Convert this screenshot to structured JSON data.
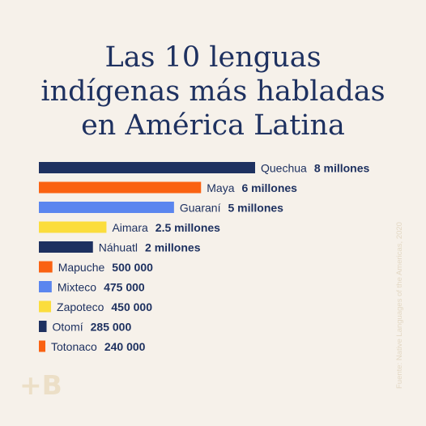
{
  "title": [
    "Las 10 lenguas",
    "indígenas más habladas",
    "en América Latina"
  ],
  "source": "Fuente: Native Languages of the Americas, 2020",
  "logo": "+B",
  "colors": {
    "navy": "#1e3160",
    "orange": "#fa6212",
    "blue": "#5b86ef",
    "yellow": "#fbdd3c",
    "text": "#1e3160"
  },
  "chart_data": {
    "type": "bar",
    "orientation": "horizontal",
    "categories": [
      "Quechua",
      "Maya",
      "Guaraní",
      "Aimara",
      "Náhuatl",
      "Mapuche",
      "Mixteco",
      "Zapoteco",
      "Otomí",
      "Totonaco"
    ],
    "values": [
      8000000,
      6000000,
      5000000,
      2500000,
      2000000,
      500000,
      475000,
      450000,
      285000,
      240000
    ],
    "value_labels": [
      "8 millones",
      "6 millones",
      "5 millones",
      "2.5 millones",
      "2 millones",
      "500 000",
      "475 000",
      "450 000",
      "285 000",
      "240 000"
    ],
    "bar_colors": [
      "#1e3160",
      "#fa6212",
      "#5b86ef",
      "#fbdd3c",
      "#1e3160",
      "#fa6212",
      "#5b86ef",
      "#fbdd3c",
      "#1e3160",
      "#fa6212"
    ]
  }
}
